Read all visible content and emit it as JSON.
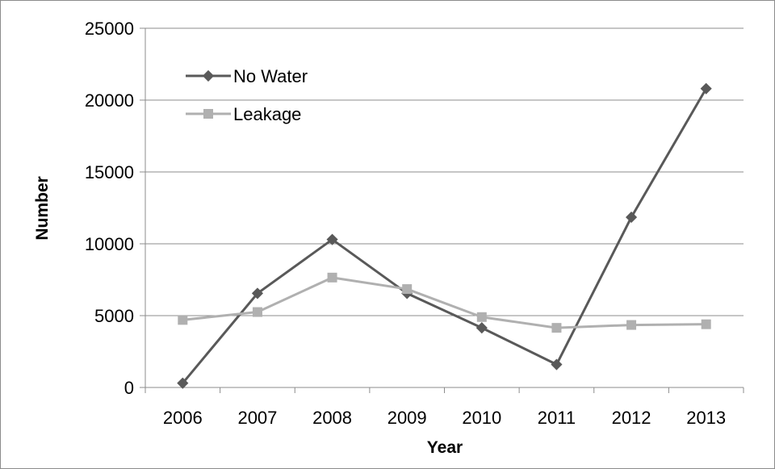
{
  "chart_data": {
    "type": "line",
    "categories": [
      "2006",
      "2007",
      "2008",
      "2009",
      "2010",
      "2011",
      "2012",
      "2013"
    ],
    "series": [
      {
        "name": "No Water",
        "values": [
          300,
          6550,
          10300,
          6550,
          4150,
          1600,
          11850,
          20800
        ],
        "color": "#595959",
        "marker": "diamond"
      },
      {
        "name": "Leakage",
        "values": [
          4700,
          5250,
          7650,
          6850,
          4900,
          4150,
          4350,
          4400
        ],
        "color": "#b0b0b0",
        "marker": "square"
      }
    ],
    "xlabel": "Year",
    "ylabel": "Number",
    "ylim": [
      0,
      25000
    ],
    "yticks": [
      0,
      5000,
      10000,
      15000,
      20000,
      25000
    ],
    "grid": true,
    "legend_position": "top-left"
  }
}
